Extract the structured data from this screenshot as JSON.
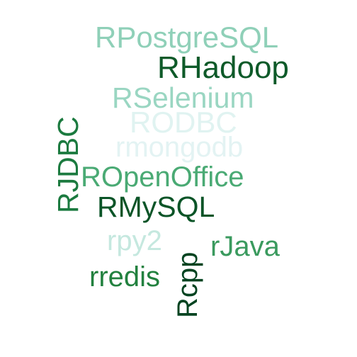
{
  "words": [
    {
      "id": "rpostgresql",
      "text": "RPostgreSQL",
      "color": "#8fd0b8"
    },
    {
      "id": "rhadoop",
      "text": "RHadoop",
      "color": "#0e5a29"
    },
    {
      "id": "rselenium",
      "text": "RSelenium",
      "color": "#9ad6c2"
    },
    {
      "id": "rodbc",
      "text": "RODBC",
      "color": "#e0f3f1"
    },
    {
      "id": "rmongodb",
      "text": "rmongodb",
      "color": "#e3f3f3"
    },
    {
      "id": "ropenoffice",
      "text": "ROpenOffice",
      "color": "#4aaa74"
    },
    {
      "id": "rjdbc",
      "text": "RJDBC",
      "color": "#1b7a3f"
    },
    {
      "id": "rmysql",
      "text": "RMySQL",
      "color": "#0a5427"
    },
    {
      "id": "rpy2",
      "text": "rpy2",
      "color": "#c5e8df"
    },
    {
      "id": "rjava",
      "text": "rJava",
      "color": "#3a9a5e"
    },
    {
      "id": "rredis",
      "text": "rredis",
      "color": "#22813f"
    },
    {
      "id": "rcpp",
      "text": "Rcpp",
      "color": "#024320"
    }
  ]
}
